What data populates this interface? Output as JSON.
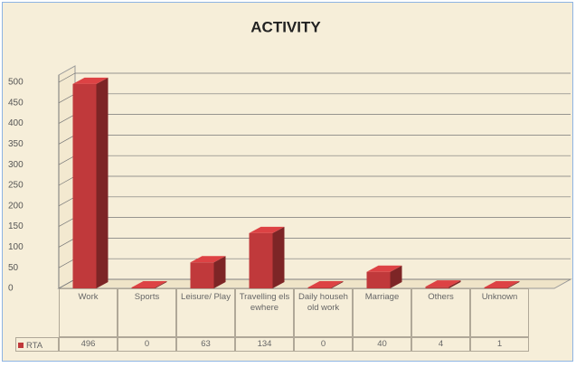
{
  "chart_data": {
    "type": "bar",
    "title": "ACTIVITY",
    "categories": [
      "Work",
      "Sports",
      "Leisure/ Play",
      "Travelling elsewhere",
      "Daily household work",
      "Marriage",
      "Others",
      "Unknown"
    ],
    "series": [
      {
        "name": "RTA",
        "color": "#c0393b",
        "values": [
          496,
          0,
          63,
          134,
          0,
          40,
          4,
          1
        ]
      }
    ],
    "ylim": [
      0,
      500
    ],
    "yticks": [
      0,
      50,
      100,
      150,
      200,
      250,
      300,
      350,
      400,
      450,
      500
    ],
    "grid": true
  }
}
